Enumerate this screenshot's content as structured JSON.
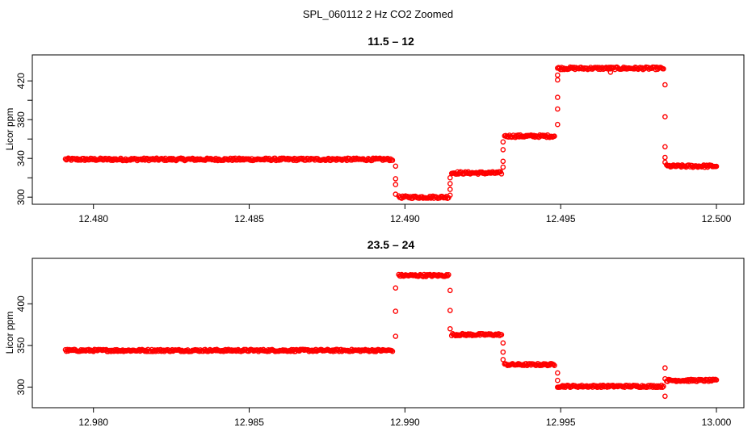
{
  "figure_title": "SPL_060112  2 Hz CO2 Zoomed",
  "colors": {
    "points": "#ff0000",
    "axes": "#000000",
    "background": "#ffffff"
  },
  "chart_data": [
    {
      "type": "scatter",
      "title": "11.5 – 12",
      "xlabel": "",
      "ylabel": "Licor ppm",
      "xlim": [
        12.4791,
        12.5
      ],
      "ylim": [
        296,
        436
      ],
      "x_ticks": [
        12.48,
        12.485,
        12.49,
        12.495,
        12.5
      ],
      "x_tick_labels": [
        "12.480",
        "12.485",
        "12.490",
        "12.495",
        "12.500"
      ],
      "y_ticks": [
        300,
        340,
        380,
        420
      ],
      "y_tick_labels": [
        "300",
        "340",
        "380",
        "420"
      ],
      "y_minor_ticks": [
        320,
        360,
        400
      ],
      "grid": false,
      "marker": "open-circle",
      "series": [
        {
          "segments": [
            {
              "x_start": 12.4791,
              "x_end": 12.4896,
              "y": 339
            },
            {
              "x_start": 12.4898,
              "x_end": 12.4914,
              "y": 300
            },
            {
              "x_start": 12.4915,
              "x_end": 12.4931,
              "y": 325
            },
            {
              "x_start": 12.4932,
              "x_end": 12.4948,
              "y": 363
            },
            {
              "x_start": 12.4949,
              "x_end": 12.4983,
              "y": 433
            },
            {
              "x_start": 12.4984,
              "x_end": 12.5,
              "y": 332
            }
          ],
          "transitions": [
            {
              "x": 12.4897,
              "y": [
                332,
                319,
                313,
                303
              ]
            },
            {
              "x": 12.49145,
              "y": [
                302,
                308,
                314,
                320
              ]
            },
            {
              "x": 12.49315,
              "y": [
                331,
                337,
                349,
                357
              ]
            },
            {
              "x": 12.4949,
              "y": [
                375,
                391,
                403,
                421,
                426
              ]
            },
            {
              "x": 12.49835,
              "y": [
                416,
                383,
                352,
                341,
                336
              ]
            }
          ],
          "outliers": [
            {
              "x": 12.4966,
              "y": 429
            }
          ]
        }
      ]
    },
    {
      "type": "scatter",
      "title": "23.5 – 24",
      "xlabel": "",
      "ylabel": "Licor ppm",
      "xlim": [
        12.9791,
        13.0
      ],
      "ylim": [
        283,
        441
      ],
      "x_ticks": [
        12.98,
        12.985,
        12.99,
        12.995,
        13.0
      ],
      "x_tick_labels": [
        "12.980",
        "12.985",
        "12.990",
        "12.995",
        "13.000"
      ],
      "y_ticks": [
        300,
        350,
        400
      ],
      "y_tick_labels": [
        "300",
        "350",
        "400"
      ],
      "y_minor_ticks": [],
      "grid": false,
      "marker": "open-circle",
      "series": [
        {
          "segments": [
            {
              "x_start": 12.9791,
              "x_end": 12.9896,
              "y": 344
            },
            {
              "x_start": 12.9898,
              "x_end": 12.9914,
              "y": 434
            },
            {
              "x_start": 12.9915,
              "x_end": 12.9931,
              "y": 363
            },
            {
              "x_start": 12.9932,
              "x_end": 12.9948,
              "y": 327
            },
            {
              "x_start": 12.9949,
              "x_end": 12.9983,
              "y": 301
            },
            {
              "x_start": 12.9984,
              "x_end": 13.0,
              "y": 308
            }
          ],
          "transitions": [
            {
              "x": 12.9897,
              "y": [
                361,
                391,
                419
              ]
            },
            {
              "x": 12.99145,
              "y": [
                416,
                392,
                370
              ]
            },
            {
              "x": 12.99315,
              "y": [
                353,
                342,
                333
              ]
            },
            {
              "x": 12.9949,
              "y": [
                317,
                308
              ]
            },
            {
              "x": 12.99835,
              "y": [
                289,
                323,
                310
              ]
            }
          ],
          "outliers": []
        }
      ]
    }
  ]
}
